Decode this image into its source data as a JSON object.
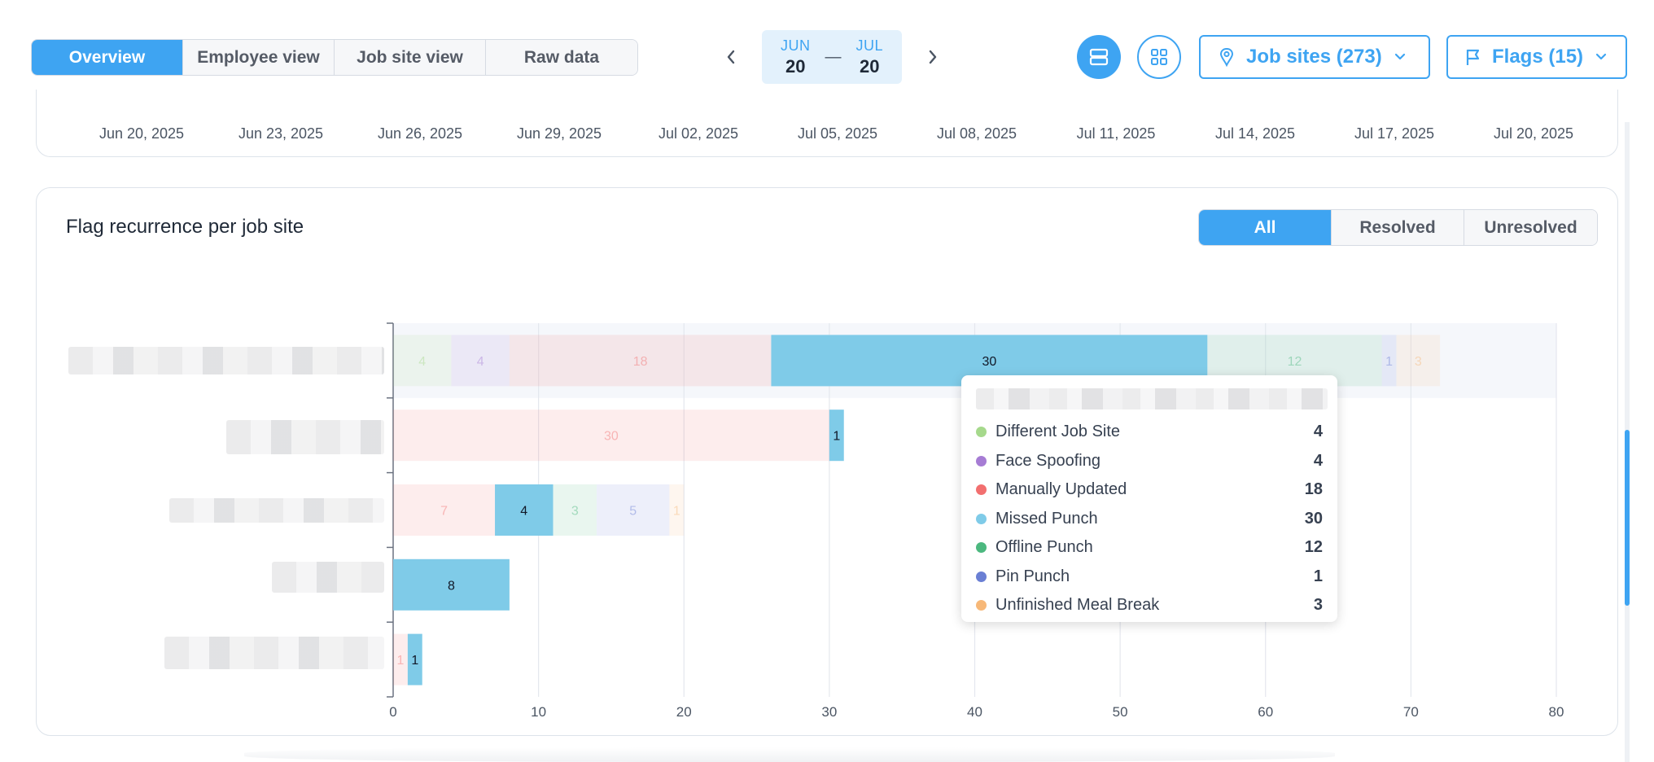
{
  "tabs": [
    {
      "label": "Overview",
      "active": true
    },
    {
      "label": "Employee view",
      "active": false
    },
    {
      "label": "Job site view",
      "active": false
    },
    {
      "label": "Raw data",
      "active": false
    }
  ],
  "date_range": {
    "start_month": "JUN",
    "start_day": "20",
    "separator": "—",
    "end_month": "JUL",
    "end_day": "20"
  },
  "view_toggle": {
    "list_icon": "rows-icon",
    "grid_icon": "grid-icon",
    "active": "list"
  },
  "filters": {
    "job_sites_label": "Job sites (273)",
    "job_sites_icon": "map-pin-icon",
    "flags_label": "Flags (15)",
    "flags_icon": "flag-icon"
  },
  "timeline_dates": [
    "Jun 20, 2025",
    "Jun 23, 2025",
    "Jun 26, 2025",
    "Jun 29, 2025",
    "Jul 02, 2025",
    "Jul 05, 2025",
    "Jul 08, 2025",
    "Jul 11, 2025",
    "Jul 14, 2025",
    "Jul 17, 2025",
    "Jul 20, 2025"
  ],
  "card": {
    "title": "Flag recurrence per job site",
    "status_filters": [
      {
        "label": "All",
        "active": true
      },
      {
        "label": "Resolved",
        "active": false
      },
      {
        "label": "Unresolved",
        "active": false
      }
    ]
  },
  "colors": {
    "accent": "#3ea4f2",
    "Different Job Site": "#a6d98c",
    "Face Spoofing": "#a67cd4",
    "Manually Updated": "#f26f6f",
    "Missed Punch": "#7fcbe8",
    "Offline Punch": "#4cb87f",
    "Pin Punch": "#6a7fd4",
    "Unfinished Meal Break": "#f7b878"
  },
  "chart_data": {
    "type": "bar",
    "orientation": "horizontal",
    "stacked": true,
    "title": "Flag recurrence per job site",
    "categories_redacted": true,
    "xlim": [
      0,
      80
    ],
    "xticks": [
      0,
      10,
      20,
      30,
      40,
      50,
      60,
      70,
      80
    ],
    "grid": true,
    "highlighted_series": "Missed Punch",
    "rows": [
      {
        "segments": [
          {
            "series": "Different Job Site",
            "value": 4
          },
          {
            "series": "Face Spoofing",
            "value": 4
          },
          {
            "series": "Manually Updated",
            "value": 18
          },
          {
            "series": "Missed Punch",
            "value": 30
          },
          {
            "series": "Offline Punch",
            "value": 12
          },
          {
            "series": "Pin Punch",
            "value": 1
          },
          {
            "series": "Unfinished Meal Break",
            "value": 3
          }
        ]
      },
      {
        "segments": [
          {
            "series": "Manually Updated",
            "value": 30
          },
          {
            "series": "Missed Punch",
            "value": 1
          }
        ]
      },
      {
        "segments": [
          {
            "series": "Manually Updated",
            "value": 7
          },
          {
            "series": "Missed Punch",
            "value": 4
          },
          {
            "series": "Offline Punch",
            "value": 3
          },
          {
            "series": "Pin Punch",
            "value": 5
          },
          {
            "series": "Unfinished Meal Break",
            "value": 1
          }
        ]
      },
      {
        "segments": [
          {
            "series": "Missed Punch",
            "value": 8
          }
        ]
      },
      {
        "segments": [
          {
            "series": "Manually Updated",
            "value": 1
          },
          {
            "series": "Missed Punch",
            "value": 1
          }
        ]
      }
    ]
  },
  "tooltip": {
    "title_redacted": true,
    "items": [
      {
        "name": "Different Job Site",
        "value": "4"
      },
      {
        "name": "Face Spoofing",
        "value": "4"
      },
      {
        "name": "Manually Updated",
        "value": "18"
      },
      {
        "name": "Missed Punch",
        "value": "30"
      },
      {
        "name": "Offline Punch",
        "value": "12"
      },
      {
        "name": "Pin Punch",
        "value": "1"
      },
      {
        "name": "Unfinished Meal Break",
        "value": "3"
      }
    ]
  }
}
